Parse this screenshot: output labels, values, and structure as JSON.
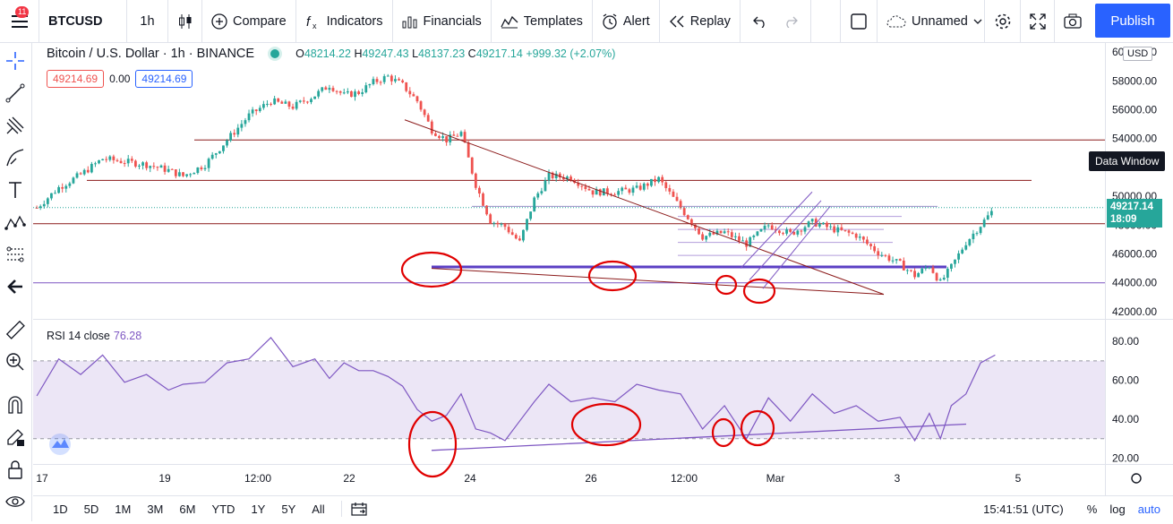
{
  "toolbar": {
    "menu_badge": "11",
    "symbol": "BTCUSD",
    "interval": "1h",
    "compare": "Compare",
    "indicators": "Indicators",
    "financials": "Financials",
    "templates": "Templates",
    "alert": "Alert",
    "replay": "Replay",
    "layout_name": "Unnamed",
    "publish": "Publish"
  },
  "legend": {
    "title": "Bitcoin / U.S. Dollar · 1h · BINANCE",
    "o_label": "O",
    "o": "48214.22",
    "h_label": "H",
    "h": "49247.43",
    "l_label": "L",
    "l": "48137.23",
    "c_label": "C",
    "c": "49217.14",
    "change": "+999.32 (+2.07%)",
    "sell": "49214.69",
    "spread": "0.00",
    "buy": "49214.69"
  },
  "price_axis": {
    "currency": "USD",
    "labels": [
      "60000.00",
      "58000.00",
      "56000.00",
      "54000.00",
      "52000.00",
      "50000.00",
      "48000.00",
      "46000.00",
      "44000.00",
      "42000.00"
    ],
    "current_price": "49217.14",
    "countdown": "18:09",
    "data_window_tooltip": "Data Window"
  },
  "rsi": {
    "label": "RSI 14 close",
    "value": "76.28",
    "axis_labels": [
      "80.00",
      "60.00",
      "40.00",
      "20.00"
    ]
  },
  "time_axis": {
    "labels": [
      "17",
      "19",
      "12:00",
      "22",
      "24",
      "26",
      "12:00",
      "Mar",
      "3",
      "5"
    ]
  },
  "bottom": {
    "ranges": [
      "1D",
      "5D",
      "1M",
      "3M",
      "6M",
      "YTD",
      "1Y",
      "5Y",
      "All"
    ],
    "clock": "15:41:51 (UTC)",
    "percent": "%",
    "log": "log",
    "auto": "auto"
  },
  "colors": {
    "up": "#26a69a",
    "down": "#ef5350",
    "accent": "#2962ff",
    "rsi": "#7e57c2",
    "annotation": "#e00000",
    "trendline": "#8b1a1a"
  },
  "chart_data": {
    "type": "candlestick",
    "title": "Bitcoin / U.S. Dollar · 1h · BINANCE",
    "y_range": [
      41500,
      60500
    ],
    "close_trace": [
      [
        17.0,
        49200
      ],
      [
        17.3,
        50600
      ],
      [
        17.6,
        51500
      ],
      [
        17.9,
        52600
      ],
      [
        18.2,
        52400
      ],
      [
        18.5,
        52200
      ],
      [
        18.8,
        51800
      ],
      [
        19.0,
        51400
      ],
      [
        19.3,
        52200
      ],
      [
        19.6,
        53900
      ],
      [
        19.9,
        55600
      ],
      [
        20.2,
        56600
      ],
      [
        20.5,
        56200
      ],
      [
        20.8,
        57000
      ],
      [
        21.0,
        57700
      ],
      [
        21.2,
        57000
      ],
      [
        21.4,
        57200
      ],
      [
        21.6,
        57900
      ],
      [
        21.8,
        58300
      ],
      [
        22.0,
        57700
      ],
      [
        22.2,
        56600
      ],
      [
        22.4,
        54600
      ],
      [
        22.6,
        53900
      ],
      [
        22.8,
        54400
      ],
      [
        23.0,
        50800
      ],
      [
        23.2,
        48300
      ],
      [
        23.4,
        47900
      ],
      [
        23.6,
        46800
      ],
      [
        23.8,
        49800
      ],
      [
        24.0,
        51400
      ],
      [
        24.3,
        51300
      ],
      [
        24.6,
        50300
      ],
      [
        24.9,
        50300
      ],
      [
        25.2,
        50500
      ],
      [
        25.5,
        51200
      ],
      [
        25.8,
        49200
      ],
      [
        26.1,
        47200
      ],
      [
        26.4,
        47500
      ],
      [
        26.7,
        46700
      ],
      [
        27.0,
        48000
      ],
      [
        27.3,
        47400
      ],
      [
        27.6,
        48200
      ],
      [
        27.9,
        47700
      ],
      [
        28.2,
        47300
      ],
      [
        28.5,
        46100
      ],
      [
        28.8,
        45300
      ],
      [
        29.0,
        44500
      ],
      [
        29.2,
        45200
      ],
      [
        29.35,
        44000
      ],
      [
        29.5,
        45100
      ],
      [
        29.7,
        46800
      ],
      [
        29.9,
        48000
      ],
      [
        30.1,
        49217
      ]
    ],
    "horizontal_levels": [
      53900,
      51100,
      49300,
      48100,
      45100,
      44000
    ],
    "rsi_range": [
      17,
      87
    ],
    "rsi_trace": [
      [
        17.0,
        55
      ],
      [
        17.3,
        68
      ],
      [
        17.6,
        66
      ],
      [
        17.9,
        70
      ],
      [
        18.2,
        62
      ],
      [
        18.5,
        60
      ],
      [
        18.8,
        58
      ],
      [
        19.0,
        55
      ],
      [
        19.3,
        62
      ],
      [
        19.6,
        66
      ],
      [
        19.9,
        74
      ],
      [
        20.2,
        79
      ],
      [
        20.5,
        70
      ],
      [
        20.8,
        68
      ],
      [
        21.0,
        64
      ],
      [
        21.2,
        66
      ],
      [
        21.4,
        68
      ],
      [
        21.6,
        62
      ],
      [
        21.8,
        65
      ],
      [
        22.0,
        54
      ],
      [
        22.2,
        48
      ],
      [
        22.4,
        36
      ],
      [
        22.6,
        45
      ],
      [
        22.8,
        50
      ],
      [
        23.0,
        38
      ],
      [
        23.2,
        30
      ],
      [
        23.4,
        32
      ],
      [
        23.6,
        36
      ],
      [
        23.8,
        52
      ],
      [
        24.0,
        55
      ],
      [
        24.3,
        52
      ],
      [
        24.6,
        48
      ],
      [
        24.9,
        52
      ],
      [
        25.2,
        55
      ],
      [
        25.5,
        58
      ],
      [
        25.8,
        50
      ],
      [
        26.1,
        38
      ],
      [
        26.4,
        44
      ],
      [
        26.7,
        33
      ],
      [
        27.0,
        48
      ],
      [
        27.3,
        42
      ],
      [
        27.6,
        50
      ],
      [
        27.9,
        46
      ],
      [
        28.2,
        44
      ],
      [
        28.5,
        42
      ],
      [
        28.8,
        38
      ],
      [
        29.0,
        32
      ],
      [
        29.2,
        40
      ],
      [
        29.35,
        33
      ],
      [
        29.5,
        44
      ],
      [
        29.7,
        56
      ],
      [
        29.9,
        66
      ],
      [
        30.1,
        76
      ]
    ]
  }
}
